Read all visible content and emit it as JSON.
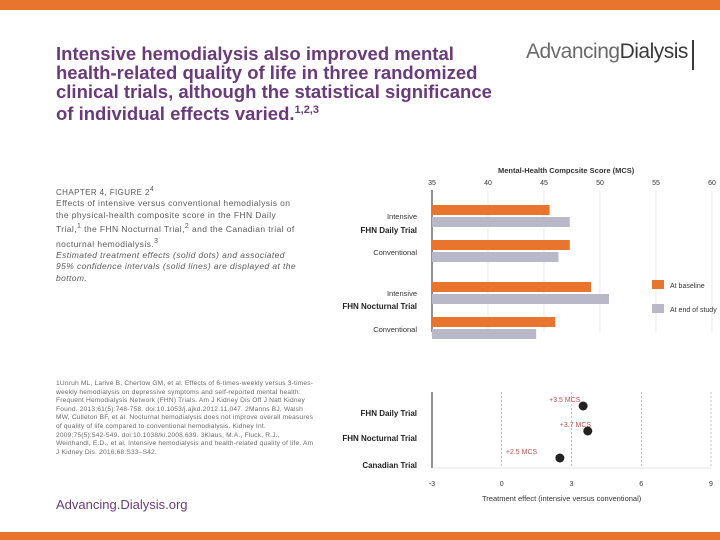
{
  "title": {
    "text": "Intensive hemodialysis also improved mental health-related quality of life in three randomized clinical trials, although the statistical significance of individual effects varied.",
    "refs": "1,2,3"
  },
  "logo": {
    "part1": "Advancing",
    "part2": "Dialysis"
  },
  "caption": {
    "heading": "Chapter 4, Figure 2",
    "heading_ref": "4",
    "body": "Effects of intensive versus conventional hemodialysis on the physical-health composite score in the FHN Daily Trial,",
    "r1": "1",
    "body2": " the FHN Nocturnal Trial,",
    "r2": "2",
    "body3": " and the Canadian trial of nocturnal hemodialysis.",
    "r3": "3",
    "italic": "Estimated treatment effects (solid dots) and associated 95% confidence intervals (solid lines) are displayed at the bottom."
  },
  "references": "1Unruh ML, Larive B, Chertow GM, et al. Effects of 6-times-weekly versus 3-times-weekly hemodialysis on depressive symptoms and self-reported mental health: Frequent Hemodialysis Network (FHN) Trials. Am J Kidney Dis Off J Natl Kidney Found. 2013;61(5):748-758. doi:10.1053/j.ajkd.2012.11.047. 2Manns BJ, Walsh MW, Culleton BF, et al. Nocturnal hemodialysis does not improve overall measures of quality of life compared to conventional hemodialysis. Kidney Int. 2009;75(5):542-549. doi:10.1038/ki.2008.639. 3Klaus, M.A., Fluck, R.J., Weinhandl, E.D., et al. Intensive hemodialysis and health-related quality of life. Am J Kidney Dis. 2016;68:S33–S42.",
  "footer": "Advancing.Dialysis.org",
  "colors": {
    "accent": "#e8742e",
    "title": "#6a3a7c",
    "baseline": "#e8742e",
    "end": "#b8b8c8",
    "dot": "#222222"
  },
  "chart_data": [
    {
      "type": "bar",
      "orientation": "horizontal",
      "title": "Mental-Health Compcsite Score (MCS)",
      "xlim": [
        35,
        60
      ],
      "ticks": [
        "35",
        "40",
        "45",
        "50",
        "55",
        "60"
      ],
      "groups": [
        {
          "label": "FHN Daily Trial",
          "rows": [
            {
              "name": "Intensive",
              "baseline": 45.5,
              "end": 47.3
            },
            {
              "name": "Conventional",
              "baseline": 47.3,
              "end": 46.3
            }
          ]
        },
        {
          "label": "FHN Nocturnal Trial",
          "rows": [
            {
              "name": "Intensive",
              "baseline": 49.2,
              "end": 50.8
            },
            {
              "name": "Conventional",
              "baseline": 46.0,
              "end": 44.3
            }
          ]
        }
      ],
      "legend": [
        "At baseline",
        "At end of study"
      ]
    },
    {
      "type": "scatter",
      "title": "Treatment effect (intensive versus conventional)",
      "xlim": [
        -3,
        9
      ],
      "ticks": [
        "-3",
        "0",
        "3",
        "6",
        "9"
      ],
      "points": [
        {
          "trial": "FHN Daily Trial",
          "effect": 3.5,
          "label": "+3.5 MCS"
        },
        {
          "trial": "FHN Nocturnal Trial",
          "effect": 3.7,
          "label": "+3.7 MCS"
        },
        {
          "trial": "Canadian Trial",
          "effect": 2.5,
          "label": "+2.5 MCS"
        }
      ]
    }
  ]
}
